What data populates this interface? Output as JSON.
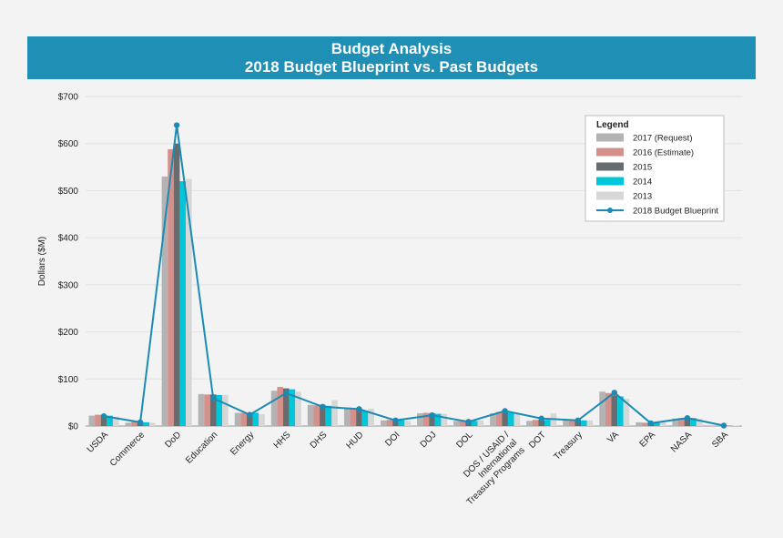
{
  "header": {
    "title_line1": "Budget Analysis",
    "title_line2": "2018 Budget Blueprint vs. Past Budgets"
  },
  "chart_data": {
    "type": "bar",
    "ylabel": "Dollars ($M)",
    "ylim": [
      0,
      700
    ],
    "yticks": [
      0,
      100,
      200,
      300,
      400,
      500,
      600,
      700
    ],
    "ytick_labels": [
      "$0",
      "$100",
      "$200",
      "$300",
      "$400",
      "$500",
      "$600",
      "$700"
    ],
    "grid": true,
    "legend": {
      "title": "Legend",
      "placement": "top-right"
    },
    "categories": [
      "USDA",
      "Commerce",
      "DoD",
      "Education",
      "Energy",
      "HHS",
      "DHS",
      "HUD",
      "DOI",
      "DOJ",
      "DOL",
      "DOS / USAID / International Treasury Programs",
      "DOT",
      "Treasury",
      "VA",
      "EPA",
      "NASA",
      "SBA"
    ],
    "category_label_lines": [
      [
        "USDA"
      ],
      [
        "Commerce"
      ],
      [
        "DoD"
      ],
      [
        "Education"
      ],
      [
        "Energy"
      ],
      [
        "HHS"
      ],
      [
        "DHS"
      ],
      [
        "HUD"
      ],
      [
        "DOI"
      ],
      [
        "DOJ"
      ],
      [
        "DOL"
      ],
      [
        "DOS / USAID /",
        "International",
        "Treasury Programs"
      ],
      [
        "DOT"
      ],
      [
        "Treasury"
      ],
      [
        "VA"
      ],
      [
        "EPA"
      ],
      [
        "NASA"
      ],
      [
        "SBA"
      ]
    ],
    "series": [
      {
        "name": "2017 (Request)",
        "kind": "bar",
        "color": "#b3b3b3",
        "values": [
          22,
          7,
          530,
          68,
          28,
          75,
          45,
          38,
          12,
          27,
          11,
          27,
          11,
          12,
          73,
          8,
          16,
          1
        ]
      },
      {
        "name": "2016 (Estimate)",
        "kind": "bar",
        "color": "#d4908a",
        "values": [
          24,
          9,
          588,
          67,
          28,
          83,
          44,
          36,
          13,
          28,
          12,
          30,
          13,
          12,
          70,
          7,
          17,
          1
        ]
      },
      {
        "name": "2015",
        "kind": "bar",
        "color": "#676c6f",
        "values": [
          23,
          8,
          600,
          67,
          27,
          80,
          45,
          35,
          12,
          27,
          12,
          29,
          13,
          12,
          65,
          8,
          18,
          1
        ]
      },
      {
        "name": "2014",
        "kind": "bar",
        "color": "#00c6d9",
        "values": [
          22,
          8,
          520,
          66,
          28,
          78,
          43,
          33,
          12,
          26,
          11,
          28,
          13,
          12,
          63,
          8,
          17,
          1
        ]
      },
      {
        "name": "2013",
        "kind": "bar",
        "color": "#d7d7d7",
        "values": [
          20,
          7,
          525,
          66,
          25,
          73,
          55,
          37,
          11,
          26,
          12,
          25,
          27,
          12,
          58,
          8,
          15,
          1
        ]
      },
      {
        "name": "2018 Budget Blueprint",
        "kind": "line",
        "color": "#1a8bb5",
        "values": [
          21,
          8,
          639,
          59,
          24,
          70,
          41,
          36,
          12,
          23,
          9,
          32,
          16,
          12,
          71,
          6,
          17,
          1
        ]
      }
    ]
  }
}
